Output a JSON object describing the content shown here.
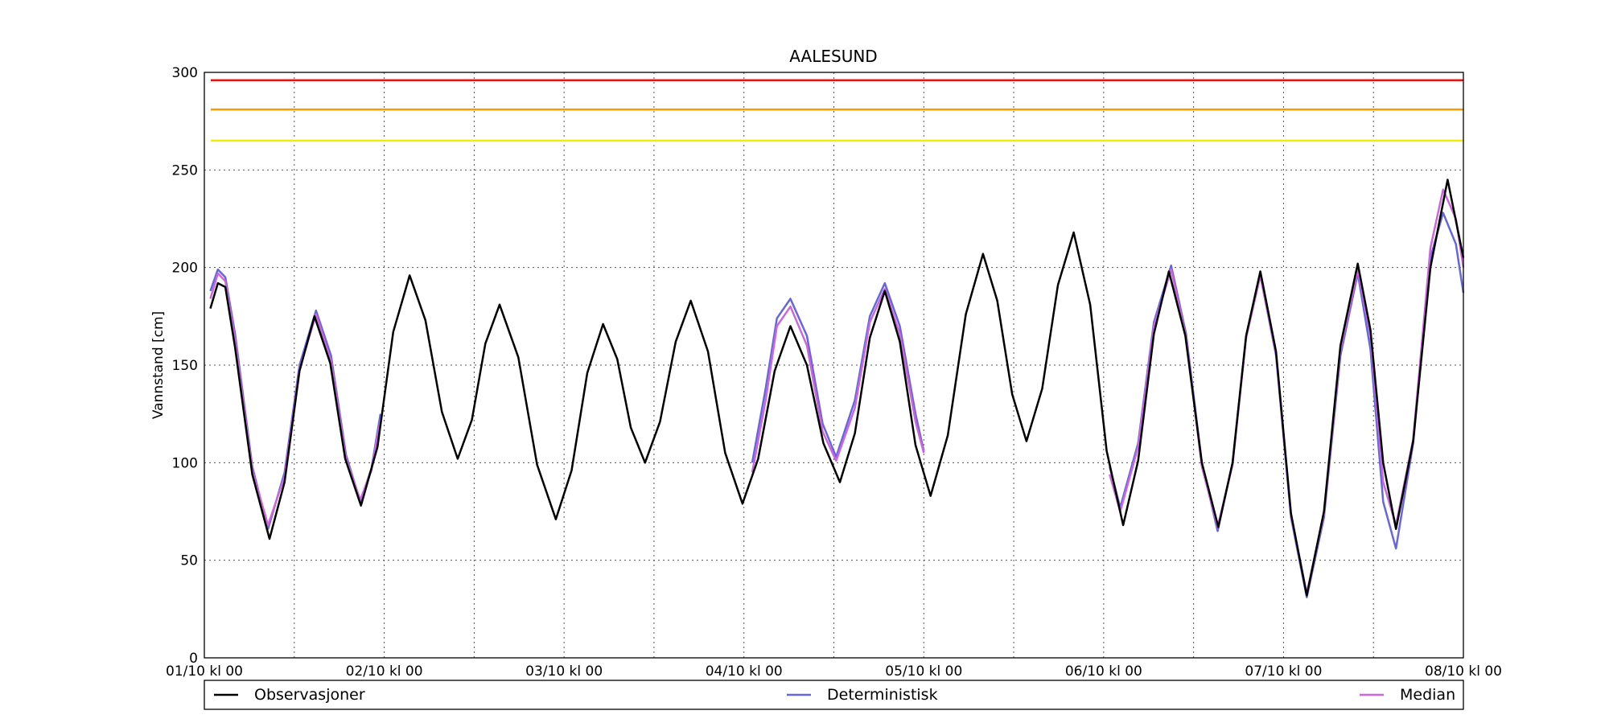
{
  "chart_data": {
    "type": "line",
    "title": "AALESUND",
    "y_label": "Vannstand [cm]",
    "xlim": [
      0,
      168
    ],
    "ylim": [
      0,
      300
    ],
    "xticks": [
      {
        "value": 0,
        "label": "01/10 kl 00"
      },
      {
        "value": 24,
        "label": "02/10 kl 00"
      },
      {
        "value": 48,
        "label": "03/10 kl 00"
      },
      {
        "value": 72,
        "label": "04/10 kl 00"
      },
      {
        "value": 96,
        "label": "05/10 kl 00"
      },
      {
        "value": 120,
        "label": "06/10 kl 00"
      },
      {
        "value": 144,
        "label": "07/10 kl 00"
      },
      {
        "value": 168,
        "label": "08/10 kl 00"
      }
    ],
    "x_minor_ticks": [
      12,
      36,
      60,
      84,
      108,
      132,
      156
    ],
    "yticks": [
      0,
      50,
      100,
      150,
      200,
      250,
      300
    ],
    "grid": true,
    "thresholds": [
      {
        "value": 296,
        "color": "#ee1111"
      },
      {
        "value": 281,
        "color": "#ff9900"
      },
      {
        "value": 265,
        "color": "#eeee00"
      }
    ],
    "series": [
      {
        "name": "Observasjoner",
        "color": "#000000",
        "x": [
          0.8,
          1.8,
          2.8,
          4.1,
          6.4,
          8.7,
          10.7,
          12.7,
          14.7,
          16.8,
          18.8,
          20.9,
          23.1,
          25.2,
          27.4,
          29.5,
          31.7,
          33.8,
          35.7,
          37.5,
          39.4,
          41.9,
          44.4,
          46.9,
          49,
          51.1,
          53.2,
          55.1,
          56.9,
          58.8,
          60.8,
          62.9,
          64.9,
          67.2,
          69.5,
          71.8,
          73.9,
          76.1,
          78.2,
          80.4,
          82.6,
          84.8,
          86.8,
          88.8,
          90.8,
          92.8,
          94.9,
          96.9,
          99.2,
          101.6,
          103.9,
          105.8,
          107.8,
          109.7,
          111.8,
          113.9,
          116,
          118.2,
          120.4,
          122.6,
          124.6,
          126.7,
          128.7,
          130.9,
          133.1,
          135.3,
          137.2,
          139,
          140.9,
          143,
          145,
          147.1,
          149.4,
          151.6,
          153.9,
          155.6,
          157.3,
          159,
          161.3,
          163.6,
          165.9,
          168
        ],
        "values": [
          179,
          192,
          190,
          159,
          94,
          61,
          90,
          147,
          175,
          151,
          102,
          78,
          108,
          167,
          196,
          173,
          126,
          102,
          122,
          161,
          181,
          154,
          99,
          71,
          96,
          146,
          171,
          153,
          118,
          100,
          121,
          162,
          183,
          157,
          105,
          79,
          102,
          147,
          170,
          150,
          110,
          90,
          115,
          164,
          188,
          162,
          109,
          83,
          114,
          176,
          207,
          183,
          135,
          111,
          138,
          191,
          218,
          181,
          106,
          68,
          101,
          166,
          198,
          165,
          100,
          67,
          100,
          165,
          198,
          157,
          74,
          32,
          75,
          160,
          202,
          168,
          100,
          66,
          111,
          200,
          245,
          205
        ]
      },
      {
        "name": "Deterministisk",
        "color": "#6666dd",
        "x": [
          0.8,
          1.8,
          2.8,
          4.1,
          6.4,
          8.5,
          10.7,
          12.7,
          14.9,
          16.9,
          18.9,
          20.8,
          22.3,
          23.5,
          48,
          73.1,
          74.9,
          76.4,
          78.2,
          80.4,
          82.5,
          84.3,
          86.8,
          88.8,
          90.8,
          92.8,
          94.9,
          96,
          108,
          120.8,
          122.2,
          124.6,
          126.7,
          129,
          131,
          133.1,
          135.2,
          137.2,
          139,
          140.9,
          143,
          145,
          147.1,
          149.4,
          151.6,
          153.9,
          155.6,
          157.3,
          159,
          161.3,
          163.6,
          165.3,
          167,
          168
        ],
        "values": [
          188,
          199,
          195,
          166,
          98,
          66,
          95,
          150,
          178,
          155,
          104,
          80,
          97,
          125,
          null,
          100,
          138,
          174,
          184,
          165,
          120,
          103,
          132,
          175,
          192,
          170,
          125,
          106,
          null,
          98,
          77,
          110,
          172,
          201,
          166,
          100,
          65,
          100,
          164,
          196,
          155,
          72,
          31,
          72,
          155,
          197,
          158,
          80,
          56,
          110,
          205,
          228,
          212,
          187
        ]
      },
      {
        "name": "Median",
        "color": "#cc66dd",
        "x": [
          0.8,
          1.8,
          2.8,
          4.1,
          6.4,
          8.5,
          10.7,
          12.7,
          14.9,
          16.9,
          18.9,
          20.8,
          22.3,
          23.5,
          48,
          73.1,
          74.9,
          76.4,
          78.2,
          80.4,
          82.5,
          84.3,
          86.8,
          88.8,
          90.8,
          92.8,
          94.9,
          96,
          108,
          120.8,
          122.2,
          124.6,
          126.7,
          129,
          131,
          133.1,
          135.2,
          137.2,
          139,
          140.9,
          143,
          145,
          147.1,
          149.4,
          151.6,
          153.9,
          155.6,
          157.3,
          159,
          161.3,
          163.6,
          165.3,
          167,
          168
        ],
        "values": [
          184,
          197,
          193,
          163,
          96,
          68,
          93,
          148,
          176,
          152,
          102,
          81,
          96,
          122,
          null,
          95,
          132,
          170,
          180,
          160,
          116,
          101,
          128,
          172,
          189,
          166,
          121,
          105,
          null,
          94,
          75,
          108,
          170,
          199,
          164,
          98,
          67,
          99,
          164,
          196,
          156,
          73,
          33,
          74,
          158,
          199,
          165,
          90,
          68,
          112,
          210,
          240,
          225,
          200
        ]
      }
    ]
  }
}
